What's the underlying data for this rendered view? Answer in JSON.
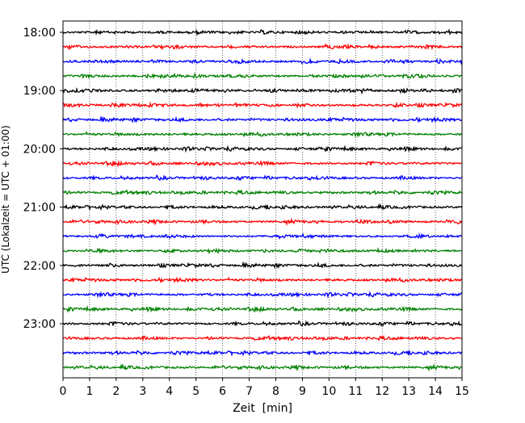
{
  "chart_data": {
    "type": "line",
    "title": "",
    "xlabel": "Zeit  [min]",
    "ylabel": "UTC (Lokalzeit = UTC + 01:00)",
    "xlim": [
      0,
      15
    ],
    "x_ticks": [
      "0",
      "1",
      "2",
      "3",
      "4",
      "5",
      "6",
      "7",
      "8",
      "9",
      "10",
      "11",
      "12",
      "13",
      "14",
      "15"
    ],
    "y_tick_labels": [
      "18:00",
      "19:00",
      "20:00",
      "21:00",
      "22:00",
      "23:00"
    ],
    "trace_start_times": [
      "18:00",
      "18:15",
      "18:30",
      "18:45",
      "19:00",
      "19:15",
      "19:30",
      "19:45",
      "20:00",
      "20:15",
      "20:30",
      "20:45",
      "21:00",
      "21:15",
      "21:30",
      "21:45",
      "22:00",
      "22:15",
      "22:30",
      "22:45",
      "23:00",
      "23:15",
      "23:30",
      "23:45"
    ],
    "trace_duration_min": 15,
    "trace_color_cycle": [
      "#000000",
      "#ff0000",
      "#0000ff",
      "#008000"
    ],
    "grid": "x dotted",
    "legend": "none"
  }
}
